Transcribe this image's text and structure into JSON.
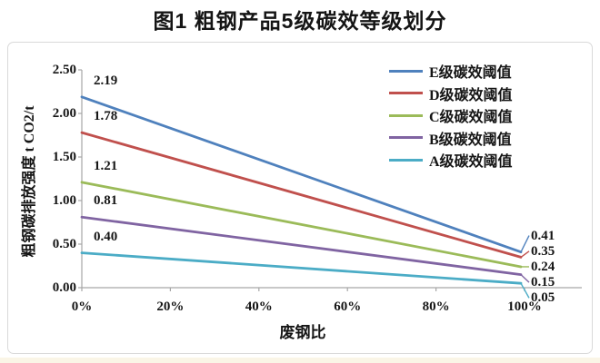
{
  "title": "图1 粗钢产品5级碳效等级划分",
  "chart_data": {
    "type": "line",
    "title": "图1 粗钢产品5级碳效等级划分",
    "xlabel": "废钢比",
    "ylabel": "粗钢碳排放强度 t CO2/t",
    "x_ticks": [
      "0%",
      "20%",
      "40%",
      "60%",
      "80%",
      "100%"
    ],
    "y_ticks": [
      "0.00",
      "0.50",
      "1.00",
      "1.50",
      "2.00",
      "2.50"
    ],
    "ylim": [
      0,
      2.5
    ],
    "xlim_percent": [
      0,
      100
    ],
    "grid": false,
    "legend_position": "top-right",
    "axis_color": "#a6a6a6",
    "series": [
      {
        "name": "E级碳效阈值",
        "color": "#4f81bd",
        "value_x": [
          "0%",
          "100%"
        ],
        "values": [
          2.19,
          0.41
        ],
        "labels": [
          "2.19",
          "0.41"
        ]
      },
      {
        "name": "D级碳效阈值",
        "color": "#c0504d",
        "value_x": [
          "0%",
          "100%"
        ],
        "values": [
          1.78,
          0.35
        ],
        "labels": [
          "1.78",
          "0.35"
        ]
      },
      {
        "name": "C级碳效阈值",
        "color": "#9bbb59",
        "value_x": [
          "0%",
          "100%"
        ],
        "values": [
          1.21,
          0.24
        ],
        "labels": [
          "1.21",
          "0.24"
        ]
      },
      {
        "name": "B级碳效阈值",
        "color": "#8064a2",
        "value_x": [
          "0%",
          "100%"
        ],
        "values": [
          0.81,
          0.15
        ],
        "labels": [
          "0.81",
          "0.15"
        ]
      },
      {
        "name": "A级碳效阈值",
        "color": "#4bacc6",
        "value_x": [
          "0%",
          "100%"
        ],
        "values": [
          0.4,
          0.05
        ],
        "labels": [
          "0.40",
          "0.05"
        ]
      }
    ]
  }
}
